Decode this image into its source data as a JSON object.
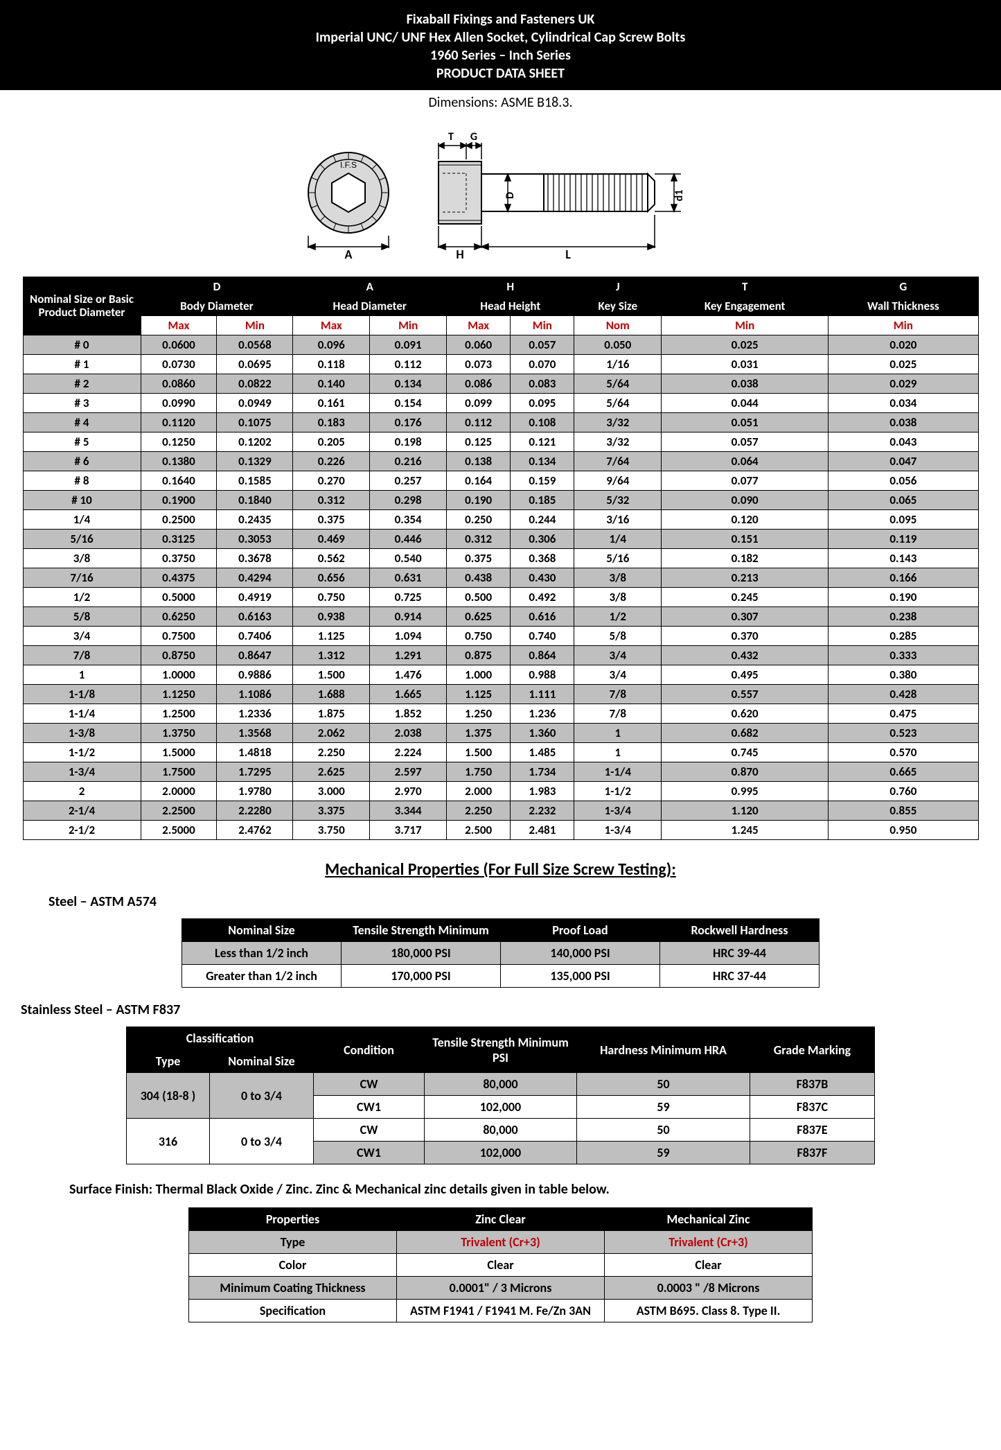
{
  "header": {
    "line1": "Fixaball Fixings and Fasteners UK",
    "line2": "Imperial UNC/ UNF Hex Allen Socket, Cylindrical Cap Screw Bolts",
    "line3": "1960 Series – Inch Series",
    "line4": "PRODUCT DATA SHEET",
    "sub": "Dimensions: ASME B18.3."
  },
  "diagram": {
    "labels": {
      "A": "A",
      "T": "T",
      "G": "G",
      "H": "H",
      "L": "L",
      "D": "D",
      "d1": "d1"
    },
    "head_fill": "#d9d9d9",
    "stroke": "#000000"
  },
  "dim_table": {
    "corner": "Nominal Size or Basic Product Diameter",
    "groups": [
      {
        "letter": "D",
        "name": "Body Diameter",
        "sub": [
          "Max",
          "Min"
        ],
        "span": 2
      },
      {
        "letter": "A",
        "name": "Head Diameter",
        "sub": [
          "Max",
          "Min"
        ],
        "span": 2
      },
      {
        "letter": "H",
        "name": "Head Height",
        "sub": [
          "Max",
          "Min"
        ],
        "span": 2
      },
      {
        "letter": "J",
        "name": "Key Size",
        "sub": [
          "Nom"
        ],
        "span": 1
      },
      {
        "letter": "T",
        "name": "Key Engagement",
        "sub": [
          "Min"
        ],
        "span": 1
      },
      {
        "letter": "G",
        "name": "Wall Thickness",
        "sub": [
          "Min"
        ],
        "span": 1
      }
    ],
    "rows": [
      [
        "# 0",
        "0.0600",
        "0.0568",
        "0.096",
        "0.091",
        "0.060",
        "0.057",
        "0.050",
        "0.025",
        "0.020"
      ],
      [
        "# 1",
        "0.0730",
        "0.0695",
        "0.118",
        "0.112",
        "0.073",
        "0.070",
        "1/16",
        "0.031",
        "0.025"
      ],
      [
        "# 2",
        "0.0860",
        "0.0822",
        "0.140",
        "0.134",
        "0.086",
        "0.083",
        "5/64",
        "0.038",
        "0.029"
      ],
      [
        "# 3",
        "0.0990",
        "0.0949",
        "0.161",
        "0.154",
        "0.099",
        "0.095",
        "5/64",
        "0.044",
        "0.034"
      ],
      [
        "# 4",
        "0.1120",
        "0.1075",
        "0.183",
        "0.176",
        "0.112",
        "0.108",
        "3/32",
        "0.051",
        "0.038"
      ],
      [
        "# 5",
        "0.1250",
        "0.1202",
        "0.205",
        "0.198",
        "0.125",
        "0.121",
        "3/32",
        "0.057",
        "0.043"
      ],
      [
        "# 6",
        "0.1380",
        "0.1329",
        "0.226",
        "0.216",
        "0.138",
        "0.134",
        "7/64",
        "0.064",
        "0.047"
      ],
      [
        "# 8",
        "0.1640",
        "0.1585",
        "0.270",
        "0.257",
        "0.164",
        "0.159",
        "9/64",
        "0.077",
        "0.056"
      ],
      [
        "# 10",
        "0.1900",
        "0.1840",
        "0.312",
        "0.298",
        "0.190",
        "0.185",
        "5/32",
        "0.090",
        "0.065"
      ],
      [
        "1/4",
        "0.2500",
        "0.2435",
        "0.375",
        "0.354",
        "0.250",
        "0.244",
        "3/16",
        "0.120",
        "0.095"
      ],
      [
        "5/16",
        "0.3125",
        "0.3053",
        "0.469",
        "0.446",
        "0.312",
        "0.306",
        "1/4",
        "0.151",
        "0.119"
      ],
      [
        "3/8",
        "0.3750",
        "0.3678",
        "0.562",
        "0.540",
        "0.375",
        "0.368",
        "5/16",
        "0.182",
        "0.143"
      ],
      [
        "7/16",
        "0.4375",
        "0.4294",
        "0.656",
        "0.631",
        "0.438",
        "0.430",
        "3/8",
        "0.213",
        "0.166"
      ],
      [
        "1/2",
        "0.5000",
        "0.4919",
        "0.750",
        "0.725",
        "0.500",
        "0.492",
        "3/8",
        "0.245",
        "0.190"
      ],
      [
        "5/8",
        "0.6250",
        "0.6163",
        "0.938",
        "0.914",
        "0.625",
        "0.616",
        "1/2",
        "0.307",
        "0.238"
      ],
      [
        "3/4",
        "0.7500",
        "0.7406",
        "1.125",
        "1.094",
        "0.750",
        "0.740",
        "5/8",
        "0.370",
        "0.285"
      ],
      [
        "7/8",
        "0.8750",
        "0.8647",
        "1.312",
        "1.291",
        "0.875",
        "0.864",
        "3/4",
        "0.432",
        "0.333"
      ],
      [
        "1",
        "1.0000",
        "0.9886",
        "1.500",
        "1.476",
        "1.000",
        "0.988",
        "3/4",
        "0.495",
        "0.380"
      ],
      [
        "1-1/8",
        "1.1250",
        "1.1086",
        "1.688",
        "1.665",
        "1.125",
        "1.111",
        "7/8",
        "0.557",
        "0.428"
      ],
      [
        "1-1/4",
        "1.2500",
        "1.2336",
        "1.875",
        "1.852",
        "1.250",
        "1.236",
        "7/8",
        "0.620",
        "0.475"
      ],
      [
        "1-3/8",
        "1.3750",
        "1.3568",
        "2.062",
        "2.038",
        "1.375",
        "1.360",
        "1",
        "0.682",
        "0.523"
      ],
      [
        "1-1/2",
        "1.5000",
        "1.4818",
        "2.250",
        "2.224",
        "1.500",
        "1.485",
        "1",
        "0.745",
        "0.570"
      ],
      [
        "1-3/4",
        "1.7500",
        "1.7295",
        "2.625",
        "2.597",
        "1.750",
        "1.734",
        "1-1/4",
        "0.870",
        "0.665"
      ],
      [
        "2",
        "2.0000",
        "1.9780",
        "3.000",
        "2.970",
        "2.000",
        "1.983",
        "1-1/2",
        "0.995",
        "0.760"
      ],
      [
        "2-1/4",
        "2.2500",
        "2.2280",
        "3.375",
        "3.344",
        "2.250",
        "2.232",
        "1-3/4",
        "1.120",
        "0.855"
      ],
      [
        "2-1/2",
        "2.5000",
        "2.4762",
        "3.750",
        "3.717",
        "2.500",
        "2.481",
        "1-3/4",
        "1.245",
        "0.950"
      ]
    ]
  },
  "mech_section_title": "Mechanical Properties (For Full Size Screw Testing):",
  "steel": {
    "title": "Steel – ASTM A574",
    "headers": [
      "Nominal Size",
      "Tensile Strength Minimum",
      "Proof Load",
      "Rockwell Hardness"
    ],
    "rows": [
      [
        "Less than 1/2 inch",
        "180,000 PSI",
        "140,000 PSI",
        "HRC 39-44"
      ],
      [
        "Greater than 1/2 inch",
        "170,000 PSI",
        "135,000 PSI",
        "HRC 37-44"
      ]
    ]
  },
  "stainless": {
    "title": "Stainless Steel – ASTM F837",
    "headers": {
      "classification": "Classification",
      "type": "Type",
      "nominal": "Nominal Size",
      "condition": "Condition",
      "tensile": "Tensile Strength Minimum PSI",
      "hardness": "Hardness Minimum HRA",
      "grade": "Grade Marking"
    },
    "rows": [
      {
        "type": "304 (18-8 )",
        "nominal": "0 to 3/4",
        "cond": "CW",
        "tensile": "80,000",
        "hard": "50",
        "grade": "F837B",
        "alt": true
      },
      {
        "cond": "CW1",
        "tensile": "102,000",
        "hard": "59",
        "grade": "F837C",
        "alt": false
      },
      {
        "type": "316",
        "nominal": "0 to 3/4",
        "cond": "CW",
        "tensile": "80,000",
        "hard": "50",
        "grade": "F837E",
        "alt": false
      },
      {
        "cond": "CW1",
        "tensile": "102,000",
        "hard": "59",
        "grade": "F837F",
        "alt": true
      }
    ]
  },
  "finish_note": "Surface Finish: Thermal Black Oxide / Zinc. Zinc & Mechanical zinc details given in table below.",
  "zinc": {
    "headers": [
      "Properties",
      "Zinc Clear",
      "Mechanical Zinc"
    ],
    "rows": [
      {
        "cells": [
          "Type",
          "Trivalent (Cr+3)",
          "Trivalent (Cr+3)"
        ],
        "red_cols": [
          1,
          2
        ],
        "alt": true
      },
      {
        "cells": [
          "Color",
          "Clear",
          "Clear"
        ],
        "red_cols": [],
        "alt": false
      },
      {
        "cells": [
          "Minimum Coating Thickness",
          "0.0001\" / 3 Microns",
          "0.0003 \" /8 Microns"
        ],
        "red_cols": [],
        "alt": true
      },
      {
        "cells": [
          "Specification",
          "ASTM F1941 / F1941 M. Fe/Zn 3AN",
          "ASTM B695. Class 8. Type II."
        ],
        "red_cols": [],
        "alt": false
      }
    ]
  },
  "colors": {
    "header_bg": "#000000",
    "header_fg": "#ffffff",
    "accent_red": "#c00000",
    "alt_row_bg": "#bfbfbf",
    "border": "#000000"
  }
}
